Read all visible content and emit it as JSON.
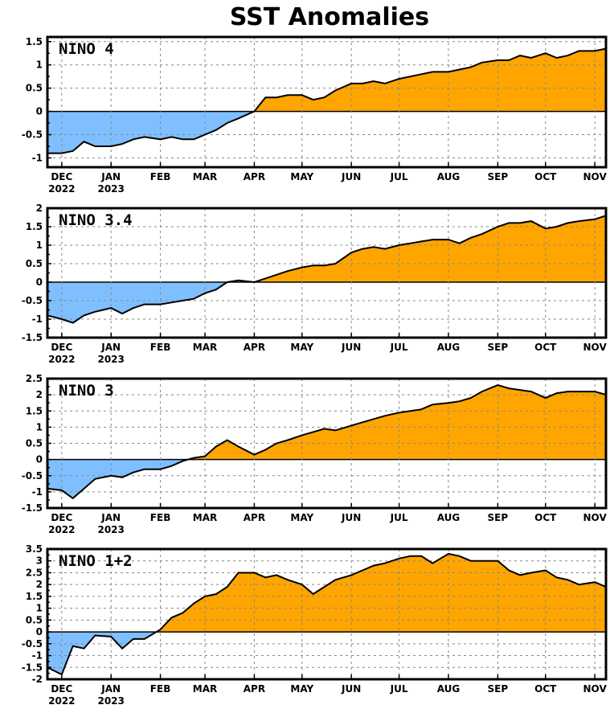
{
  "title": "SST Anomalies",
  "colors": {
    "positive": "#FFA500",
    "negative": "#7FBFFF",
    "outline": "#000000",
    "grid": "#888888"
  },
  "x_axis": {
    "start": "2022-11-22",
    "end": "2023-11-08",
    "ticks": [
      {
        "date": "2022-12-01",
        "label": "DEC",
        "sublabel": "2022"
      },
      {
        "date": "2023-01-01",
        "label": "JAN",
        "sublabel": "2023"
      },
      {
        "date": "2023-02-01",
        "label": "FEB",
        "sublabel": ""
      },
      {
        "date": "2023-03-01",
        "label": "MAR",
        "sublabel": ""
      },
      {
        "date": "2023-04-01",
        "label": "APR",
        "sublabel": ""
      },
      {
        "date": "2023-05-01",
        "label": "MAY",
        "sublabel": ""
      },
      {
        "date": "2023-06-01",
        "label": "JUN",
        "sublabel": ""
      },
      {
        "date": "2023-07-01",
        "label": "JUL",
        "sublabel": ""
      },
      {
        "date": "2023-08-01",
        "label": "AUG",
        "sublabel": ""
      },
      {
        "date": "2023-09-01",
        "label": "SEP",
        "sublabel": ""
      },
      {
        "date": "2023-10-01",
        "label": "OCT",
        "sublabel": ""
      },
      {
        "date": "2023-11-01",
        "label": "NOV",
        "sublabel": ""
      }
    ]
  },
  "chart_data": [
    {
      "type": "area",
      "title": "NINO 4",
      "ylim": [
        -1.2,
        1.6
      ],
      "yticks": [
        "-1",
        "-0.5",
        "0",
        "0.5",
        "1",
        "1.5"
      ],
      "ytick_values": [
        -1,
        -0.5,
        0,
        0.5,
        1,
        1.5
      ],
      "x": [
        "2022-11-22",
        "2022-12-01",
        "2022-12-08",
        "2022-12-15",
        "2022-12-22",
        "2023-01-01",
        "2023-01-08",
        "2023-01-15",
        "2023-01-22",
        "2023-02-01",
        "2023-02-08",
        "2023-02-15",
        "2023-02-22",
        "2023-03-01",
        "2023-03-08",
        "2023-03-15",
        "2023-03-22",
        "2023-04-01",
        "2023-04-08",
        "2023-04-15",
        "2023-04-22",
        "2023-05-01",
        "2023-05-08",
        "2023-05-15",
        "2023-05-22",
        "2023-06-01",
        "2023-06-08",
        "2023-06-15",
        "2023-06-22",
        "2023-07-01",
        "2023-07-08",
        "2023-07-15",
        "2023-07-22",
        "2023-08-01",
        "2023-08-08",
        "2023-08-15",
        "2023-08-22",
        "2023-09-01",
        "2023-09-08",
        "2023-09-15",
        "2023-09-22",
        "2023-10-01",
        "2023-10-08",
        "2023-10-15",
        "2023-10-22",
        "2023-11-01",
        "2023-11-08"
      ],
      "values": [
        -0.9,
        -0.9,
        -0.85,
        -0.65,
        -0.75,
        -0.75,
        -0.7,
        -0.6,
        -0.55,
        -0.6,
        -0.55,
        -0.6,
        -0.6,
        -0.5,
        -0.4,
        -0.25,
        -0.15,
        0.0,
        0.3,
        0.3,
        0.35,
        0.35,
        0.25,
        0.3,
        0.45,
        0.6,
        0.6,
        0.65,
        0.6,
        0.7,
        0.75,
        0.8,
        0.85,
        0.85,
        0.9,
        0.95,
        1.05,
        1.1,
        1.1,
        1.2,
        1.15,
        1.25,
        1.15,
        1.2,
        1.3,
        1.3,
        1.35
      ]
    },
    {
      "type": "area",
      "title": "NINO 3.4",
      "ylim": [
        -1.5,
        2.0
      ],
      "yticks": [
        "-1.5",
        "-1",
        "-0.5",
        "0",
        "0.5",
        "1",
        "1.5",
        "2"
      ],
      "ytick_values": [
        -1.5,
        -1,
        -0.5,
        0,
        0.5,
        1,
        1.5,
        2
      ],
      "x": [
        "2022-11-22",
        "2022-12-01",
        "2022-12-08",
        "2022-12-15",
        "2022-12-22",
        "2023-01-01",
        "2023-01-08",
        "2023-01-15",
        "2023-01-22",
        "2023-02-01",
        "2023-02-08",
        "2023-02-15",
        "2023-02-22",
        "2023-03-01",
        "2023-03-08",
        "2023-03-15",
        "2023-03-22",
        "2023-04-01",
        "2023-04-08",
        "2023-04-15",
        "2023-04-22",
        "2023-05-01",
        "2023-05-08",
        "2023-05-15",
        "2023-05-22",
        "2023-06-01",
        "2023-06-08",
        "2023-06-15",
        "2023-06-22",
        "2023-07-01",
        "2023-07-08",
        "2023-07-15",
        "2023-07-22",
        "2023-08-01",
        "2023-08-08",
        "2023-08-15",
        "2023-08-22",
        "2023-09-01",
        "2023-09-08",
        "2023-09-15",
        "2023-09-22",
        "2023-10-01",
        "2023-10-08",
        "2023-10-15",
        "2023-10-22",
        "2023-11-01",
        "2023-11-08"
      ],
      "values": [
        -0.9,
        -1.0,
        -1.1,
        -0.9,
        -0.8,
        -0.7,
        -0.85,
        -0.7,
        -0.6,
        -0.6,
        -0.55,
        -0.5,
        -0.45,
        -0.3,
        -0.2,
        0.0,
        0.05,
        0.0,
        0.1,
        0.2,
        0.3,
        0.4,
        0.45,
        0.45,
        0.5,
        0.8,
        0.9,
        0.95,
        0.9,
        1.0,
        1.05,
        1.1,
        1.15,
        1.15,
        1.05,
        1.2,
        1.3,
        1.5,
        1.6,
        1.6,
        1.65,
        1.45,
        1.5,
        1.6,
        1.65,
        1.7,
        1.8
      ]
    },
    {
      "type": "area",
      "title": "NINO 3",
      "ylim": [
        -1.5,
        2.5
      ],
      "yticks": [
        "-1.5",
        "-1",
        "-0.5",
        "0",
        "0.5",
        "1",
        "1.5",
        "2",
        "2.5"
      ],
      "ytick_values": [
        -1.5,
        -1,
        -0.5,
        0,
        0.5,
        1,
        1.5,
        2,
        2.5
      ],
      "x": [
        "2022-11-22",
        "2022-12-01",
        "2022-12-08",
        "2022-12-15",
        "2022-12-22",
        "2023-01-01",
        "2023-01-08",
        "2023-01-15",
        "2023-01-22",
        "2023-02-01",
        "2023-02-08",
        "2023-02-15",
        "2023-02-22",
        "2023-03-01",
        "2023-03-08",
        "2023-03-15",
        "2023-03-22",
        "2023-04-01",
        "2023-04-08",
        "2023-04-15",
        "2023-04-22",
        "2023-05-01",
        "2023-05-08",
        "2023-05-15",
        "2023-05-22",
        "2023-06-01",
        "2023-06-08",
        "2023-06-15",
        "2023-06-22",
        "2023-07-01",
        "2023-07-08",
        "2023-07-15",
        "2023-07-22",
        "2023-08-01",
        "2023-08-08",
        "2023-08-15",
        "2023-08-22",
        "2023-09-01",
        "2023-09-08",
        "2023-09-15",
        "2023-09-22",
        "2023-10-01",
        "2023-10-08",
        "2023-10-15",
        "2023-10-22",
        "2023-11-01",
        "2023-11-08"
      ],
      "values": [
        -0.9,
        -0.95,
        -1.2,
        -0.9,
        -0.6,
        -0.5,
        -0.55,
        -0.4,
        -0.3,
        -0.3,
        -0.2,
        -0.05,
        0.05,
        0.1,
        0.4,
        0.6,
        0.4,
        0.15,
        0.3,
        0.5,
        0.6,
        0.75,
        0.85,
        0.95,
        0.9,
        1.05,
        1.15,
        1.25,
        1.35,
        1.45,
        1.5,
        1.55,
        1.7,
        1.75,
        1.8,
        1.9,
        2.1,
        2.3,
        2.2,
        2.15,
        2.1,
        1.9,
        2.05,
        2.1,
        2.1,
        2.1,
        2.0
      ]
    },
    {
      "type": "area",
      "title": "NINO 1+2",
      "ylim": [
        -2.0,
        3.5
      ],
      "yticks": [
        "-2",
        "-1.5",
        "-1",
        "-0.5",
        "0",
        "0.5",
        "1",
        "1.5",
        "2",
        "2.5",
        "3",
        "3.5"
      ],
      "ytick_values": [
        -2,
        -1.5,
        -1,
        -0.5,
        0,
        0.5,
        1,
        1.5,
        2,
        2.5,
        3,
        3.5
      ],
      "x": [
        "2022-11-22",
        "2022-12-01",
        "2022-12-08",
        "2022-12-15",
        "2022-12-22",
        "2023-01-01",
        "2023-01-08",
        "2023-01-15",
        "2023-01-22",
        "2023-02-01",
        "2023-02-08",
        "2023-02-15",
        "2023-02-22",
        "2023-03-01",
        "2023-03-08",
        "2023-03-15",
        "2023-03-22",
        "2023-04-01",
        "2023-04-08",
        "2023-04-15",
        "2023-04-22",
        "2023-05-01",
        "2023-05-08",
        "2023-05-15",
        "2023-05-22",
        "2023-06-01",
        "2023-06-08",
        "2023-06-15",
        "2023-06-22",
        "2023-07-01",
        "2023-07-08",
        "2023-07-15",
        "2023-07-22",
        "2023-08-01",
        "2023-08-08",
        "2023-08-15",
        "2023-08-22",
        "2023-09-01",
        "2023-09-08",
        "2023-09-15",
        "2023-09-22",
        "2023-10-01",
        "2023-10-08",
        "2023-10-15",
        "2023-10-22",
        "2023-11-01",
        "2023-11-08"
      ],
      "values": [
        -1.5,
        -1.8,
        -0.6,
        -0.7,
        -0.15,
        -0.2,
        -0.7,
        -0.3,
        -0.3,
        0.1,
        0.6,
        0.8,
        1.2,
        1.5,
        1.6,
        1.9,
        2.5,
        2.5,
        2.3,
        2.4,
        2.2,
        2.0,
        1.6,
        1.9,
        2.2,
        2.4,
        2.6,
        2.8,
        2.9,
        3.1,
        3.2,
        3.2,
        2.9,
        3.3,
        3.2,
        3.0,
        3.0,
        3.0,
        2.6,
        2.4,
        2.5,
        2.6,
        2.3,
        2.2,
        2.0,
        2.1,
        1.9
      ]
    }
  ]
}
